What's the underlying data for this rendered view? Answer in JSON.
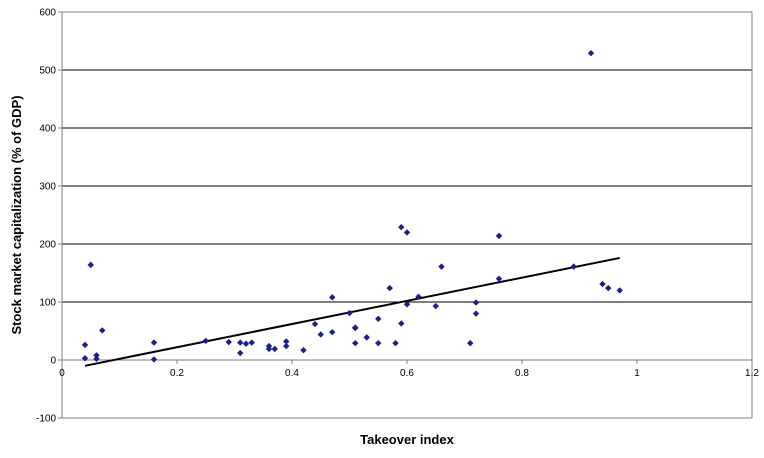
{
  "chart_data": {
    "type": "scatter",
    "xlabel": "Takeover index",
    "ylabel": "Stock market capitalization (% of GDP)",
    "xlim": [
      0,
      1.2
    ],
    "ylim": [
      -100,
      600
    ],
    "x_ticks": [
      0,
      0.2,
      0.4,
      0.6,
      0.8,
      1,
      1.2
    ],
    "x_tick_labels": [
      "0",
      "0.2",
      "0.4",
      "0.6",
      "0.8",
      "1",
      "1.2"
    ],
    "y_ticks": [
      -100,
      0,
      100,
      200,
      300,
      400,
      500,
      600
    ],
    "y_tick_labels": [
      "-100",
      "0",
      "100",
      "200",
      "300",
      "400",
      "500",
      "600"
    ],
    "grid": "horizontal",
    "marker_color": "#1a1f8c",
    "trendline": {
      "x": [
        0.04,
        0.97
      ],
      "y": [
        -10,
        176
      ],
      "color": "#000000"
    },
    "points": [
      {
        "x": 0.04,
        "y": 26
      },
      {
        "x": 0.04,
        "y": 3
      },
      {
        "x": 0.05,
        "y": 164
      },
      {
        "x": 0.06,
        "y": 8
      },
      {
        "x": 0.06,
        "y": 2
      },
      {
        "x": 0.07,
        "y": 51
      },
      {
        "x": 0.16,
        "y": 30
      },
      {
        "x": 0.16,
        "y": 1
      },
      {
        "x": 0.25,
        "y": 33
      },
      {
        "x": 0.29,
        "y": 31
      },
      {
        "x": 0.31,
        "y": 30
      },
      {
        "x": 0.31,
        "y": 12
      },
      {
        "x": 0.32,
        "y": 28
      },
      {
        "x": 0.33,
        "y": 30
      },
      {
        "x": 0.36,
        "y": 24
      },
      {
        "x": 0.36,
        "y": 19
      },
      {
        "x": 0.37,
        "y": 19
      },
      {
        "x": 0.39,
        "y": 32
      },
      {
        "x": 0.39,
        "y": 24
      },
      {
        "x": 0.42,
        "y": 17
      },
      {
        "x": 0.44,
        "y": 62
      },
      {
        "x": 0.45,
        "y": 44
      },
      {
        "x": 0.47,
        "y": 108
      },
      {
        "x": 0.47,
        "y": 48
      },
      {
        "x": 0.5,
        "y": 81
      },
      {
        "x": 0.51,
        "y": 55
      },
      {
        "x": 0.51,
        "y": 56
      },
      {
        "x": 0.51,
        "y": 29
      },
      {
        "x": 0.53,
        "y": 39
      },
      {
        "x": 0.55,
        "y": 71
      },
      {
        "x": 0.55,
        "y": 29
      },
      {
        "x": 0.57,
        "y": 124
      },
      {
        "x": 0.58,
        "y": 29
      },
      {
        "x": 0.59,
        "y": 229
      },
      {
        "x": 0.59,
        "y": 63
      },
      {
        "x": 0.6,
        "y": 220
      },
      {
        "x": 0.6,
        "y": 96
      },
      {
        "x": 0.62,
        "y": 109
      },
      {
        "x": 0.65,
        "y": 93
      },
      {
        "x": 0.66,
        "y": 161
      },
      {
        "x": 0.71,
        "y": 29
      },
      {
        "x": 0.72,
        "y": 99
      },
      {
        "x": 0.72,
        "y": 80
      },
      {
        "x": 0.76,
        "y": 214
      },
      {
        "x": 0.76,
        "y": 140
      },
      {
        "x": 0.89,
        "y": 161
      },
      {
        "x": 0.92,
        "y": 529
      },
      {
        "x": 0.94,
        "y": 131
      },
      {
        "x": 0.95,
        "y": 124
      },
      {
        "x": 0.97,
        "y": 120
      }
    ]
  }
}
